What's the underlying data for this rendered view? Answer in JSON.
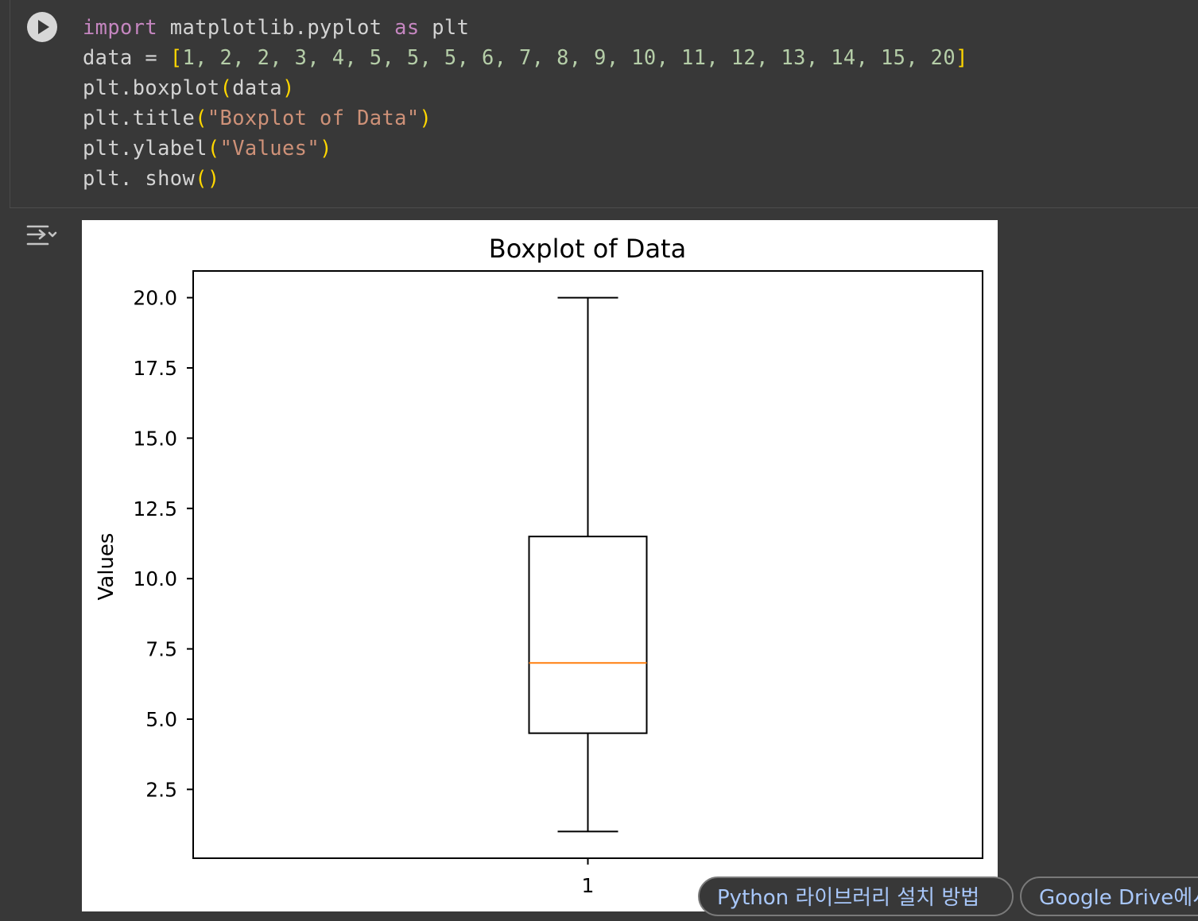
{
  "code": {
    "line1": {
      "kw_import": "import",
      "module": " matplotlib.pyplot ",
      "kw_as": "as",
      "alias": " plt"
    },
    "line2": {
      "prefix": "data = ",
      "open": "[",
      "values": "1, 2, 2, 3, 4, 5, 5, 5, 6, 7, 8, 9, 10, 11, 12, 13, 14, 15, 20",
      "close": "]"
    },
    "line3": {
      "prefix": "plt.boxplot",
      "open": "(",
      "arg": "data",
      "close": ")"
    },
    "line4": {
      "prefix": "plt.title",
      "open": "(",
      "arg": "\"Boxplot of Data\"",
      "close": ")"
    },
    "line5": {
      "prefix": "plt.ylabel",
      "open": "(",
      "arg": "\"Values\"",
      "close": ")"
    },
    "line6": {
      "prefix": "plt. show",
      "open": "(",
      "close": ")"
    }
  },
  "icons": {
    "run": "play-icon",
    "output_toggle": "output-toggle-icon"
  },
  "colors": {
    "background": "#383838",
    "keyword": "#c586c0",
    "string": "#ce9178",
    "number": "#b5cea8",
    "bracket": "#ffd700",
    "median": "#ff7f0e",
    "chip_text": "#a8c7fa"
  },
  "chart_data": {
    "type": "box",
    "title": "Boxplot of Data",
    "xlabel": "",
    "ylabel": "Values",
    "categories": [
      "1"
    ],
    "box": {
      "whisker_low": 1,
      "q1": 4.5,
      "median": 7,
      "q3": 11.5,
      "whisker_high": 20
    },
    "ylim": [
      0.05,
      20.95
    ],
    "yticks": [
      "2.5",
      "5.0",
      "7.5",
      "10.0",
      "12.5",
      "15.0",
      "17.5",
      "20.0"
    ],
    "ytick_values": [
      2.5,
      5.0,
      7.5,
      10.0,
      12.5,
      15.0,
      17.5,
      20.0
    ],
    "grid": false
  },
  "suggestions": [
    {
      "label": "Python 라이브러리 설치 방법"
    },
    {
      "label": "Google Drive에서"
    }
  ]
}
